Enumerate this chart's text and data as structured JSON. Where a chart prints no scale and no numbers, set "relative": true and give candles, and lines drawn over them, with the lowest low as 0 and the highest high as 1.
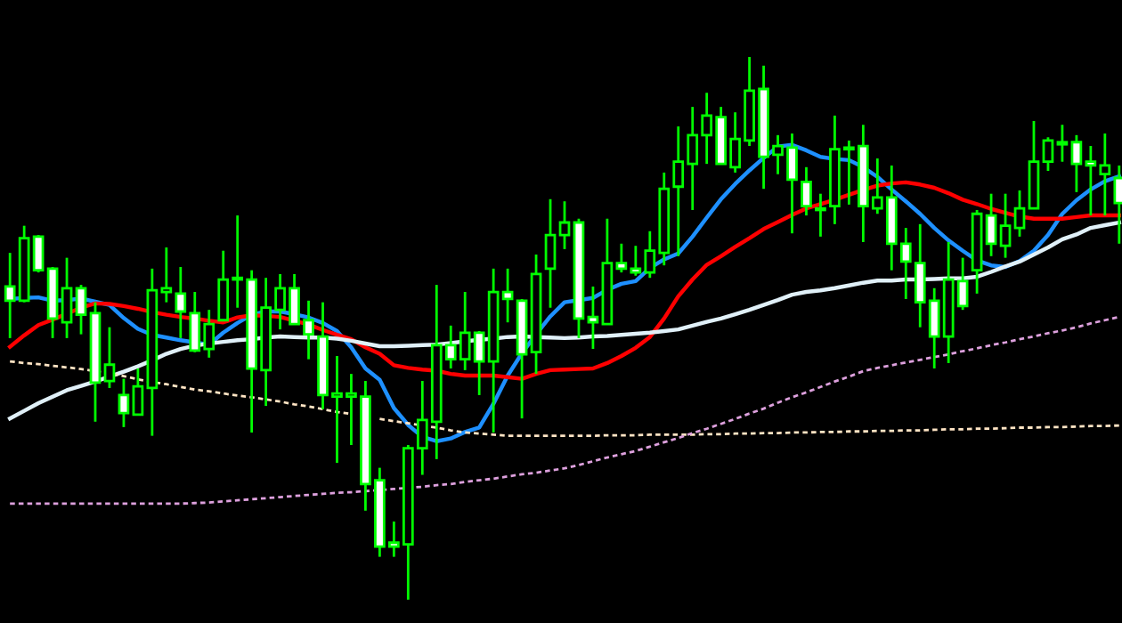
{
  "chart_data": {
    "type": "candlestick",
    "relative": true,
    "categories": [
      null,
      null,
      null,
      null,
      null,
      null,
      null,
      null,
      null,
      null,
      null,
      null,
      null,
      null,
      null,
      null,
      null,
      null,
      null,
      null,
      null,
      null,
      null,
      null,
      null,
      null,
      null,
      null,
      null,
      null,
      null,
      null,
      null,
      null,
      null,
      null,
      null,
      null,
      null,
      null,
      null,
      null,
      null,
      null,
      null,
      null,
      null,
      null,
      null,
      null,
      null,
      null,
      null,
      null,
      null,
      null,
      null,
      null,
      null,
      null,
      null,
      null,
      null,
      null,
      null,
      null,
      null,
      null,
      null,
      null,
      null,
      null,
      null,
      null,
      null,
      null,
      null,
      null,
      null
    ],
    "ohlc": [
      [
        0.577,
        0.639,
        0.482,
        0.551
      ],
      [
        0.551,
        0.689,
        0.548,
        0.666
      ],
      [
        0.669,
        0.672,
        0.603,
        0.607
      ],
      [
        0.61,
        0.613,
        0.482,
        0.518
      ],
      [
        0.511,
        0.63,
        0.482,
        0.574
      ],
      [
        0.574,
        0.58,
        0.489,
        0.525
      ],
      [
        0.528,
        0.548,
        0.328,
        0.4
      ],
      [
        0.403,
        0.502,
        0.39,
        0.433
      ],
      [
        0.377,
        0.407,
        0.318,
        0.344
      ],
      [
        0.341,
        0.426,
        0.341,
        0.393
      ],
      [
        0.39,
        0.61,
        0.302,
        0.57
      ],
      [
        0.567,
        0.649,
        0.548,
        0.574
      ],
      [
        0.564,
        0.613,
        0.482,
        0.531
      ],
      [
        0.528,
        0.567,
        0.456,
        0.459
      ],
      [
        0.462,
        0.534,
        0.446,
        0.508
      ],
      [
        0.515,
        0.643,
        0.515,
        0.59
      ],
      [
        0.59,
        0.708,
        0.538,
        0.593
      ],
      [
        0.59,
        0.607,
        0.308,
        0.426
      ],
      [
        0.423,
        0.593,
        0.357,
        0.538
      ],
      [
        0.534,
        0.6,
        0.498,
        0.574
      ],
      [
        0.574,
        0.6,
        0.508,
        0.508
      ],
      [
        0.515,
        0.551,
        0.443,
        0.489
      ],
      [
        0.485,
        0.548,
        0.351,
        0.377
      ],
      [
        0.374,
        0.449,
        0.252,
        0.38
      ],
      [
        0.374,
        0.416,
        0.285,
        0.38
      ],
      [
        0.374,
        0.403,
        0.164,
        0.213
      ],
      [
        0.22,
        0.243,
        0.079,
        0.098
      ],
      [
        0.105,
        0.144,
        0.079,
        0.098
      ],
      [
        0.102,
        0.285,
        0.0,
        0.279
      ],
      [
        0.279,
        0.403,
        0.23,
        0.331
      ],
      [
        0.328,
        0.58,
        0.259,
        0.469
      ],
      [
        0.469,
        0.505,
        0.426,
        0.443
      ],
      [
        0.443,
        0.567,
        0.423,
        0.492
      ],
      [
        0.492,
        0.495,
        0.377,
        0.439
      ],
      [
        0.439,
        0.61,
        0.308,
        0.567
      ],
      [
        0.567,
        0.61,
        0.511,
        0.554
      ],
      [
        0.551,
        0.554,
        0.334,
        0.452
      ],
      [
        0.456,
        0.636,
        0.416,
        0.6
      ],
      [
        0.61,
        0.738,
        0.538,
        0.672
      ],
      [
        0.672,
        0.734,
        0.646,
        0.695
      ],
      [
        0.695,
        0.702,
        0.482,
        0.518
      ],
      [
        0.521,
        0.577,
        0.462,
        0.511
      ],
      [
        0.508,
        0.702,
        0.508,
        0.62
      ],
      [
        0.62,
        0.656,
        0.603,
        0.61
      ],
      [
        0.61,
        0.652,
        0.597,
        0.603
      ],
      [
        0.603,
        0.679,
        0.593,
        0.643
      ],
      [
        0.639,
        0.787,
        0.616,
        0.757
      ],
      [
        0.761,
        0.872,
        0.633,
        0.807
      ],
      [
        0.803,
        0.908,
        0.718,
        0.856
      ],
      [
        0.856,
        0.934,
        0.803,
        0.892
      ],
      [
        0.889,
        0.908,
        0.803,
        0.803
      ],
      [
        0.797,
        0.898,
        0.787,
        0.849
      ],
      [
        0.846,
        1.0,
        0.836,
        0.938
      ],
      [
        0.941,
        0.984,
        0.757,
        0.816
      ],
      [
        0.82,
        0.856,
        0.784,
        0.836
      ],
      [
        0.833,
        0.859,
        0.675,
        0.774
      ],
      [
        0.77,
        0.797,
        0.708,
        0.725
      ],
      [
        0.718,
        0.748,
        0.669,
        0.721
      ],
      [
        0.725,
        0.892,
        0.692,
        0.83
      ],
      [
        0.83,
        0.846,
        0.728,
        0.833
      ],
      [
        0.836,
        0.875,
        0.659,
        0.725
      ],
      [
        0.721,
        0.813,
        0.711,
        0.741
      ],
      [
        0.741,
        0.8,
        0.607,
        0.656
      ],
      [
        0.656,
        0.685,
        0.554,
        0.623
      ],
      [
        0.62,
        0.692,
        0.502,
        0.548
      ],
      [
        0.551,
        0.574,
        0.426,
        0.485
      ],
      [
        0.485,
        0.659,
        0.436,
        0.59
      ],
      [
        0.587,
        0.63,
        0.534,
        0.541
      ],
      [
        0.607,
        0.718,
        0.564,
        0.711
      ],
      [
        0.708,
        0.748,
        0.633,
        0.656
      ],
      [
        0.652,
        0.748,
        0.63,
        0.689
      ],
      [
        0.685,
        0.754,
        0.669,
        0.721
      ],
      [
        0.721,
        0.882,
        0.721,
        0.807
      ],
      [
        0.807,
        0.852,
        0.79,
        0.846
      ],
      [
        0.839,
        0.875,
        0.807,
        0.843
      ],
      [
        0.843,
        0.856,
        0.751,
        0.803
      ],
      [
        0.807,
        0.836,
        0.708,
        0.8
      ],
      [
        0.784,
        0.859,
        0.708,
        0.8
      ],
      [
        0.777,
        0.8,
        0.656,
        0.731
      ]
    ],
    "series": [
      {
        "type": "line",
        "color": "#1e90ff",
        "line_style": "solid",
        "values": [
          0.554,
          0.556,
          0.557,
          0.551,
          0.552,
          0.555,
          0.549,
          0.543,
          0.519,
          0.499,
          0.488,
          0.483,
          0.478,
          0.474,
          0.47,
          0.492,
          0.51,
          0.525,
          0.531,
          0.531,
          0.526,
          0.52,
          0.51,
          0.495,
          0.465,
          0.426,
          0.405,
          0.353,
          0.322,
          0.3,
          0.292,
          0.297,
          0.309,
          0.317,
          0.361,
          0.413,
          0.454,
          0.489,
          0.522,
          0.548,
          0.552,
          0.556,
          0.571,
          0.582,
          0.587,
          0.611,
          0.627,
          0.638,
          0.669,
          0.704,
          0.738,
          0.766,
          0.791,
          0.814,
          0.835,
          0.838,
          0.828,
          0.816,
          0.812,
          0.81,
          0.797,
          0.779,
          0.756,
          0.734,
          0.711,
          0.685,
          0.662,
          0.643,
          0.625,
          0.616,
          0.613,
          0.624,
          0.643,
          0.672,
          0.711,
          0.736,
          0.756,
          0.771,
          0.78
        ]
      },
      {
        "type": "line",
        "color": "#ff0000",
        "line_style": "solid",
        "values": [
          0.466,
          0.487,
          0.506,
          0.516,
          0.527,
          0.538,
          0.546,
          0.545,
          0.541,
          0.536,
          0.53,
          0.525,
          0.521,
          0.518,
          0.514,
          0.511,
          0.52,
          0.524,
          0.523,
          0.521,
          0.514,
          0.507,
          0.497,
          0.488,
          0.48,
          0.465,
          0.453,
          0.432,
          0.427,
          0.424,
          0.422,
          0.416,
          0.413,
          0.413,
          0.413,
          0.41,
          0.407,
          0.416,
          0.423,
          0.424,
          0.425,
          0.426,
          0.436,
          0.449,
          0.464,
          0.484,
          0.518,
          0.559,
          0.59,
          0.617,
          0.633,
          0.65,
          0.666,
          0.683,
          0.696,
          0.709,
          0.721,
          0.729,
          0.737,
          0.746,
          0.755,
          0.763,
          0.767,
          0.769,
          0.765,
          0.759,
          0.749,
          0.737,
          0.729,
          0.72,
          0.713,
          0.706,
          0.702,
          0.702,
          0.702,
          0.705,
          0.708,
          0.708,
          0.708
        ]
      },
      {
        "type": "line",
        "color": "#e0f0f8",
        "line_style": "solid",
        "values": [
          0.334,
          0.348,
          0.362,
          0.374,
          0.386,
          0.394,
          0.402,
          0.411,
          0.42,
          0.43,
          0.441,
          0.453,
          0.462,
          0.468,
          0.472,
          0.475,
          0.478,
          0.48,
          0.483,
          0.485,
          0.484,
          0.483,
          0.483,
          0.481,
          0.477,
          0.472,
          0.467,
          0.467,
          0.468,
          0.469,
          0.47,
          0.473,
          0.476,
          0.479,
          0.481,
          0.484,
          0.485,
          0.484,
          0.483,
          0.482,
          0.483,
          0.485,
          0.486,
          0.488,
          0.49,
          0.492,
          0.495,
          0.498,
          0.505,
          0.512,
          0.518,
          0.526,
          0.534,
          0.543,
          0.552,
          0.562,
          0.567,
          0.57,
          0.574,
          0.579,
          0.584,
          0.588,
          0.588,
          0.59,
          0.59,
          0.591,
          0.592,
          0.592,
          0.595,
          0.604,
          0.614,
          0.623,
          0.636,
          0.649,
          0.664,
          0.673,
          0.685,
          0.69,
          0.695
        ]
      },
      {
        "type": "line",
        "color": "#ffe4c4",
        "line_style": "dashed",
        "values": [
          0.439,
          0.436,
          0.434,
          0.431,
          0.428,
          0.425,
          0.421,
          0.417,
          0.412,
          0.406,
          0.401,
          0.397,
          0.392,
          0.387,
          0.384,
          0.38,
          0.376,
          0.373,
          0.369,
          0.365,
          0.36,
          0.356,
          0.351,
          0.346,
          0.342,
          null,
          0.333,
          0.329,
          0.325,
          0.321,
          0.317,
          0.312,
          0.308,
          0.306,
          0.304,
          0.302,
          0.302,
          0.302,
          0.302,
          0.302,
          0.302,
          0.302,
          0.303,
          0.303,
          0.303,
          0.304,
          0.304,
          0.304,
          0.304,
          0.305,
          0.305,
          0.306,
          0.306,
          0.307,
          0.307,
          0.308,
          0.308,
          0.309,
          0.309,
          0.31,
          0.31,
          0.311,
          0.311,
          0.312,
          0.312,
          0.313,
          0.314,
          0.314,
          0.315,
          0.315,
          0.316,
          0.317,
          0.317,
          0.318,
          0.318,
          0.319,
          0.32,
          0.32,
          0.321
        ]
      },
      {
        "type": "line",
        "color": "#dda0dd",
        "line_style": "dashed",
        "values": [
          0.177,
          0.177,
          0.177,
          0.177,
          0.177,
          0.177,
          0.177,
          0.177,
          0.177,
          0.177,
          0.177,
          0.177,
          0.177,
          0.178,
          0.179,
          0.181,
          0.183,
          0.185,
          0.187,
          0.189,
          0.191,
          0.193,
          0.195,
          0.197,
          0.198,
          0.2,
          0.202,
          0.204,
          0.206,
          0.208,
          0.211,
          0.213,
          0.217,
          0.22,
          0.223,
          0.227,
          0.231,
          0.234,
          0.238,
          0.242,
          0.248,
          0.255,
          0.262,
          0.268,
          0.274,
          0.282,
          0.29,
          0.298,
          0.307,
          0.315,
          0.324,
          0.333,
          0.343,
          0.352,
          0.363,
          0.373,
          0.382,
          0.392,
          0.402,
          0.411,
          0.421,
          0.427,
          0.432,
          0.437,
          0.442,
          0.447,
          0.452,
          0.458,
          0.463,
          0.469,
          0.474,
          0.48,
          0.485,
          0.491,
          0.496,
          0.502,
          0.509,
          0.515,
          0.521
        ]
      }
    ]
  }
}
